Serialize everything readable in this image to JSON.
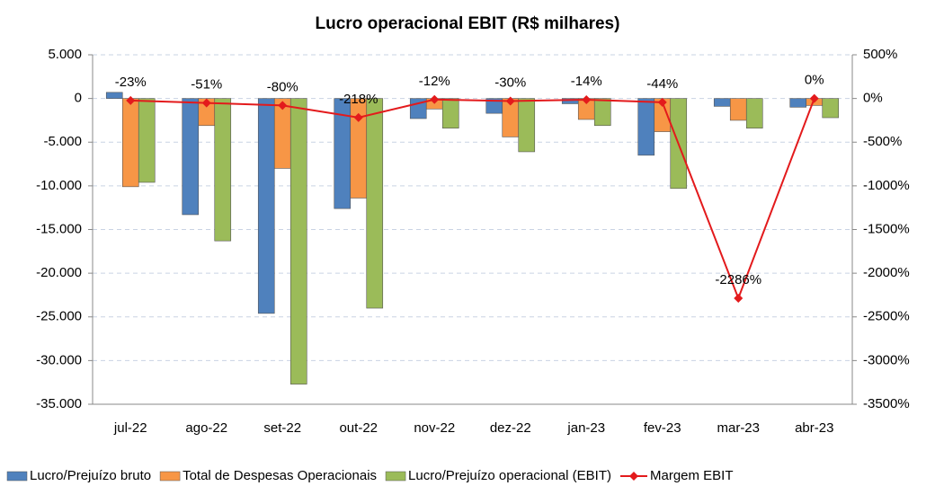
{
  "chart_data": {
    "type": "bar",
    "title": "Lucro operacional EBIT (R$ milhares)",
    "categories": [
      "jul-22",
      "ago-22",
      "set-22",
      "out-22",
      "nov-22",
      "dez-22",
      "jan-23",
      "fev-23",
      "mar-23",
      "abr-23"
    ],
    "series": [
      {
        "name": "Lucro/Prejuízo bruto",
        "color": "#4f81bd",
        "values": [
          700,
          -13300,
          -24600,
          -12600,
          -2300,
          -1700,
          -600,
          -6500,
          -900,
          -1000
        ]
      },
      {
        "name": "Total de Despesas Operacionais",
        "color": "#f79646",
        "values": [
          -10100,
          -3100,
          -8000,
          -11400,
          -1200,
          -4400,
          -2400,
          -3800,
          -2500,
          -800
        ]
      },
      {
        "name": "Lucro/Prejuízo operacional (EBIT)",
        "color": "#9bbb59",
        "values": [
          -9600,
          -16300,
          -32700,
          -24000,
          -3400,
          -6100,
          -3100,
          -10300,
          -3400,
          -2200
        ]
      },
      {
        "name": "Margem EBIT",
        "color": "#e31a1c",
        "type": "line",
        "axis": "y2",
        "values": [
          -23,
          -51,
          -80,
          -218,
          -12,
          -30,
          -14,
          -44,
          -2286,
          0
        ],
        "value_labels": [
          "-23%",
          "-51%",
          "-80%",
          "-218%",
          "-12%",
          "-30%",
          "-14%",
          "-44%",
          "-2286%",
          "0%"
        ]
      }
    ],
    "ylim": [
      -35000,
      5000
    ],
    "yticks": [
      {
        "value": 5000,
        "label": "5.000"
      },
      0,
      {
        "value": -5000,
        "label": "-5.000"
      },
      {
        "value": -10000,
        "label": "-10.000"
      },
      {
        "value": -15000,
        "label": "-15.000"
      },
      {
        "value": -20000,
        "label": "-20.000"
      },
      {
        "value": -25000,
        "label": "-25.000"
      },
      {
        "value": -30000,
        "label": "-30.000"
      },
      {
        "value": -35000,
        "label": "-35.000"
      }
    ],
    "y2lim": [
      -3500,
      500
    ],
    "y2ticks": [
      {
        "value": 500,
        "label": "500%"
      },
      {
        "value": 0,
        "label": "0%"
      },
      {
        "value": -500,
        "label": "-500%"
      },
      {
        "value": -1000,
        "label": "-1000%"
      },
      {
        "value": -1500,
        "label": "-1500%"
      },
      {
        "value": -2000,
        "label": "-2000%"
      },
      {
        "value": -2500,
        "label": "-2500%"
      },
      {
        "value": -3000,
        "label": "-3000%"
      },
      {
        "value": -3500,
        "label": "-3500%"
      }
    ],
    "grid": true,
    "legend": "bottom"
  }
}
